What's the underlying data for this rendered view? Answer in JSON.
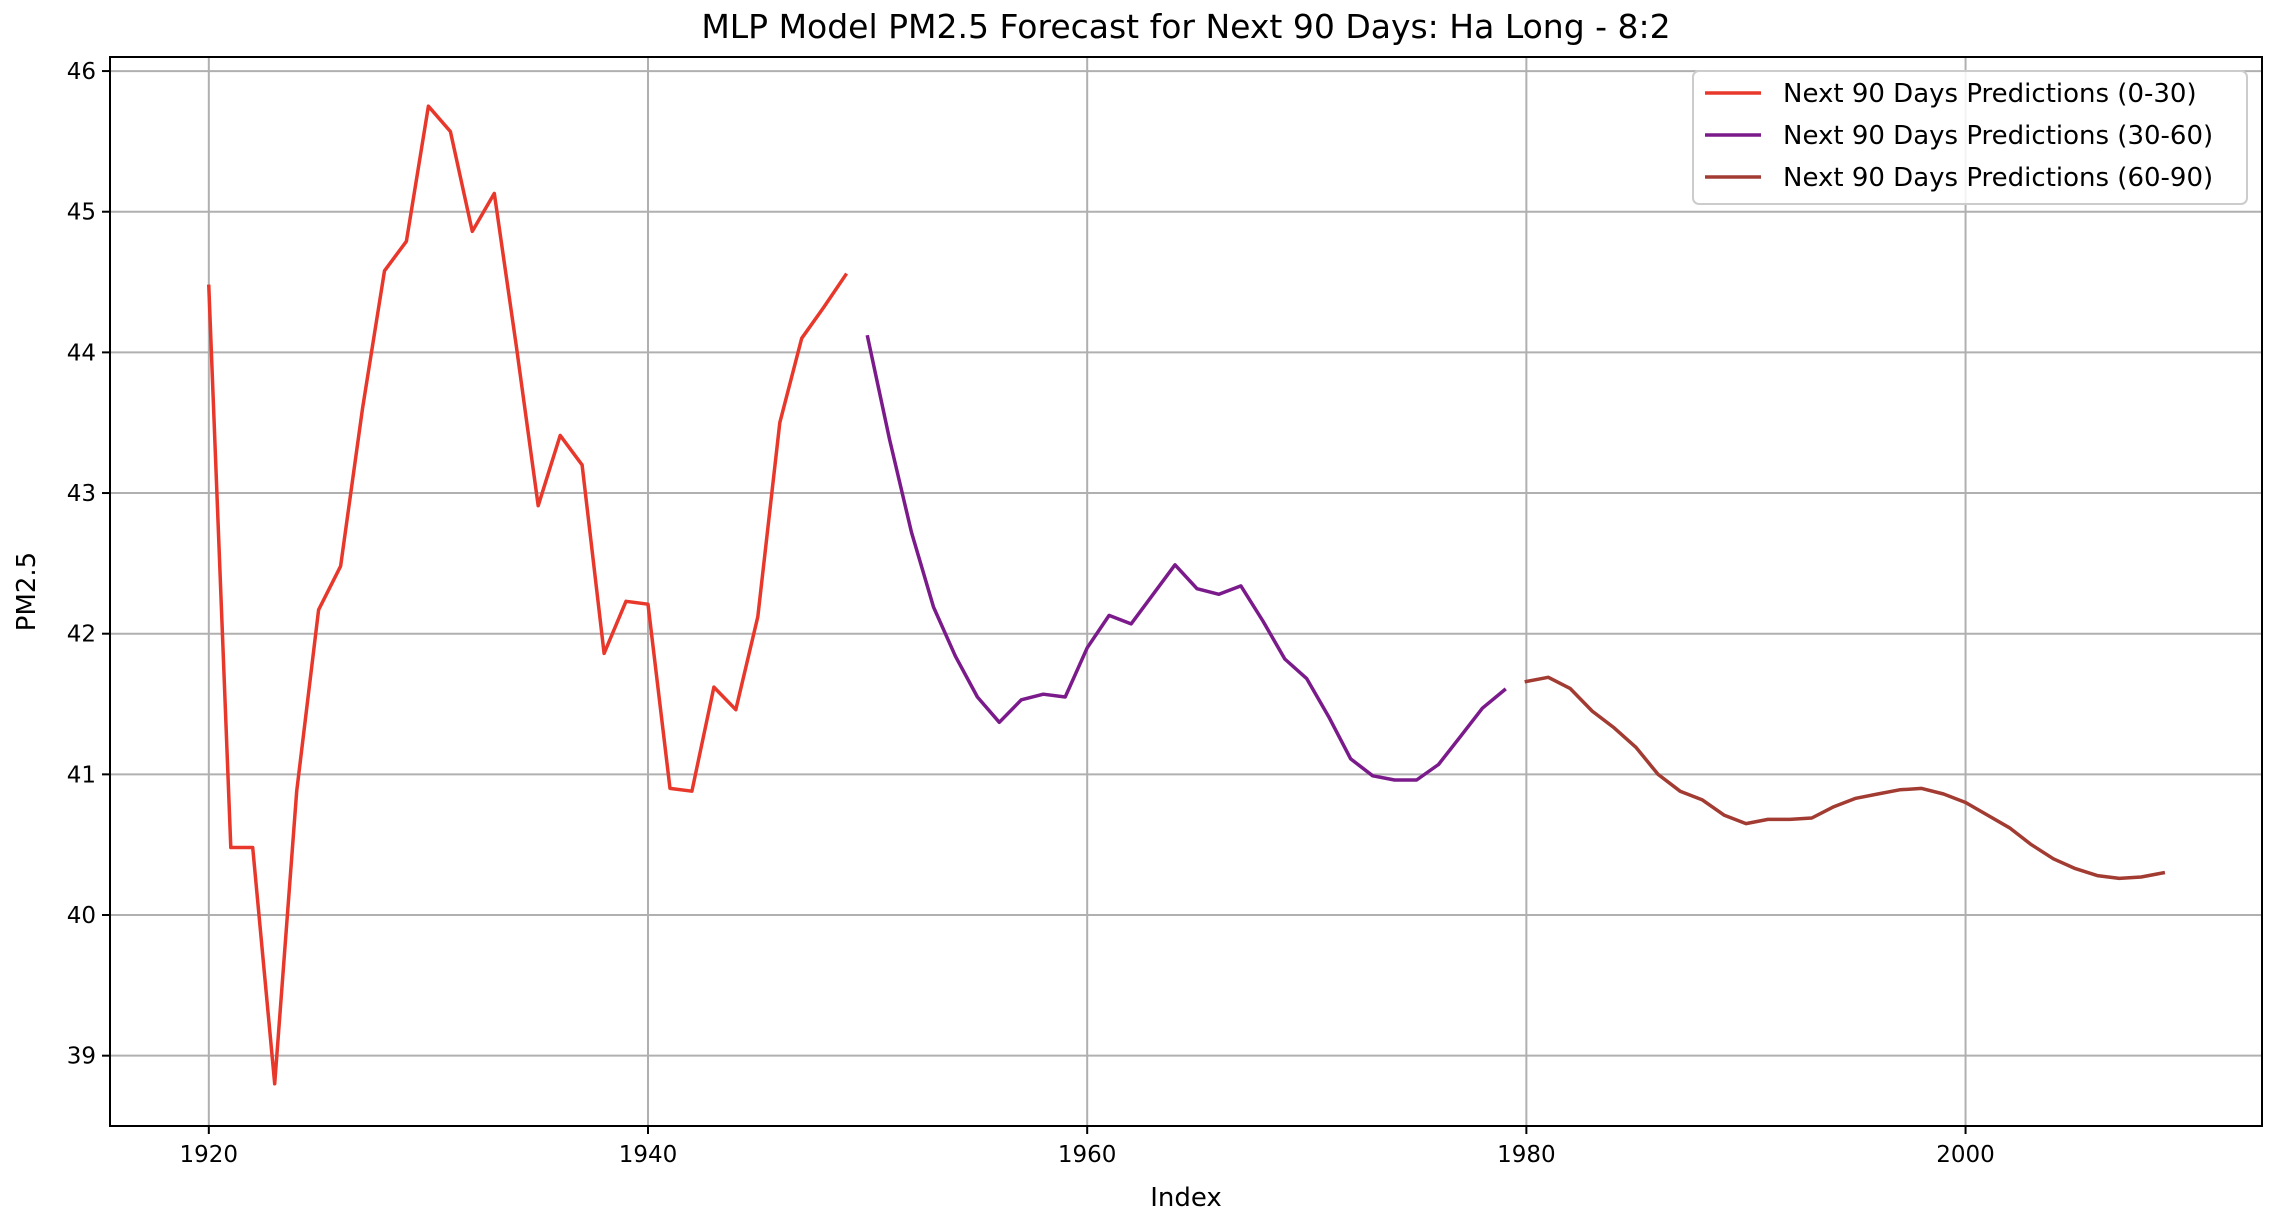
{
  "chart_data": {
    "type": "line",
    "title": "MLP Model PM2.5 Forecast for Next 90 Days: Ha Long - 8:2",
    "xlabel": "Index",
    "ylabel": "PM2.5",
    "xlim": [
      1915.5,
      2013.5
    ],
    "ylim": [
      38.5,
      46.1
    ],
    "xticks": [
      1920,
      1940,
      1960,
      1980,
      2000
    ],
    "yticks": [
      39,
      40,
      41,
      42,
      43,
      44,
      45,
      46
    ],
    "grid": true,
    "legend_position": "top-right",
    "series": [
      {
        "name": "Next 90 Days Predictions (0-30)",
        "color": "#e8382b",
        "x": [
          1920,
          1921,
          1922,
          1923,
          1924,
          1925,
          1926,
          1927,
          1928,
          1929,
          1930,
          1931,
          1932,
          1933,
          1934,
          1935,
          1936,
          1937,
          1938,
          1939,
          1940,
          1941,
          1942,
          1943,
          1944,
          1945,
          1946,
          1947,
          1948,
          1949
        ],
        "values": [
          44.47,
          40.48,
          40.48,
          38.8,
          40.88,
          42.17,
          42.48,
          43.6,
          44.58,
          44.79,
          45.75,
          45.57,
          44.86,
          45.13,
          44.05,
          42.91,
          43.41,
          43.2,
          41.86,
          42.23,
          42.21,
          40.9,
          40.88,
          41.62,
          41.46,
          42.12,
          43.5,
          44.1,
          44.32,
          44.55
        ]
      },
      {
        "name": "Next 90 Days Predictions (30-60)",
        "color": "#7b1a8b",
        "x": [
          1950,
          1951,
          1952,
          1953,
          1954,
          1955,
          1956,
          1957,
          1958,
          1959,
          1960,
          1961,
          1962,
          1963,
          1964,
          1965,
          1966,
          1967,
          1968,
          1969,
          1970,
          1971,
          1972,
          1973,
          1974,
          1975,
          1976,
          1977,
          1978,
          1979
        ],
        "values": [
          44.11,
          43.38,
          42.72,
          42.19,
          41.84,
          41.55,
          41.37,
          41.53,
          41.57,
          41.55,
          41.9,
          42.13,
          42.07,
          42.28,
          42.49,
          42.32,
          42.28,
          42.34,
          42.09,
          41.82,
          41.68,
          41.41,
          41.11,
          40.99,
          40.96,
          40.96,
          41.07,
          41.27,
          41.47,
          41.6
        ]
      },
      {
        "name": "Next 90 Days Predictions (60-90)",
        "color": "#a23b32",
        "x": [
          1980,
          1981,
          1982,
          1983,
          1984,
          1985,
          1986,
          1987,
          1988,
          1989,
          1990,
          1991,
          1992,
          1993,
          1994,
          1995,
          1996,
          1997,
          1998,
          1999,
          2000,
          2001,
          2002,
          2003,
          2004,
          2005,
          2006,
          2007,
          2008,
          2009
        ],
        "values": [
          41.66,
          41.69,
          41.61,
          41.45,
          41.33,
          41.19,
          41.0,
          40.88,
          40.82,
          40.71,
          40.65,
          40.68,
          40.68,
          40.69,
          40.77,
          40.83,
          40.86,
          40.89,
          40.9,
          40.86,
          40.8,
          40.71,
          40.62,
          40.5,
          40.4,
          40.33,
          40.28,
          40.26,
          40.27,
          40.3
        ]
      }
    ]
  }
}
